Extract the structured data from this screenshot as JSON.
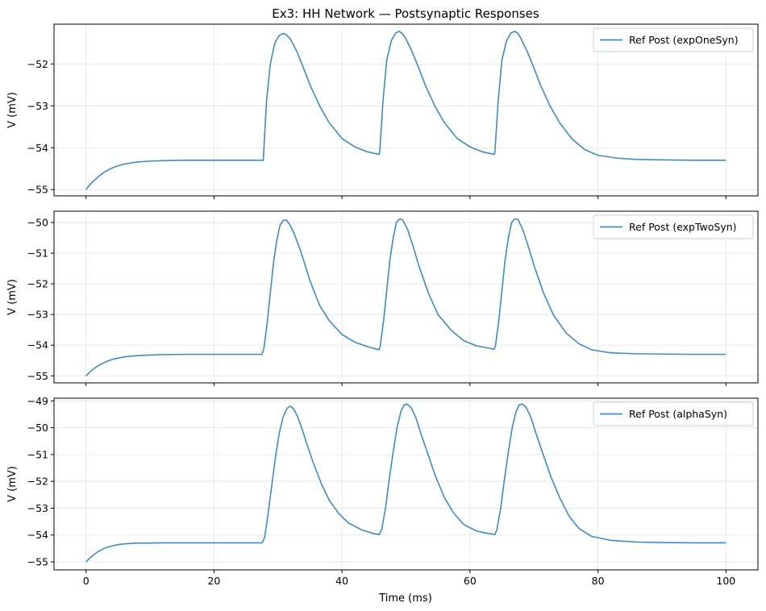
{
  "chart_data": [
    {
      "type": "line",
      "title": "Ex3: HH Network — Postsynaptic Responses",
      "xlabel": "",
      "ylabel": "V (mV)",
      "xlim": [
        -5,
        105
      ],
      "ylim": [
        -55.15,
        -51.05
      ],
      "yticks": [
        -55,
        -54,
        -53,
        -52
      ],
      "xticks": [
        0,
        20,
        40,
        60,
        80,
        100
      ],
      "show_xtick_labels": false,
      "grid": true,
      "legend_position": "top-right",
      "series": [
        {
          "name": "Ref Post (expOneSyn)",
          "color": "#1f77b4",
          "x": [
            0,
            0.5,
            1,
            2,
            3,
            4,
            5,
            6,
            8,
            10,
            12,
            15,
            20,
            25,
            27.4,
            27.7,
            28.2,
            28.8,
            29.5,
            30.2,
            30.8,
            31.3,
            32,
            33,
            34,
            35,
            36.5,
            38,
            40,
            42,
            44,
            45.8,
            45.9,
            46.4,
            47,
            47.7,
            48.4,
            48.9,
            49.4,
            50,
            51,
            52,
            53,
            54.5,
            56,
            58,
            60,
            62,
            63.8,
            63.9,
            64.4,
            65,
            65.7,
            66.4,
            67,
            67.5,
            68,
            69,
            70,
            71,
            72.5,
            74,
            76,
            78,
            80,
            83,
            86,
            90,
            95,
            100
          ],
          "y": [
            -55.0,
            -54.9,
            -54.82,
            -54.68,
            -54.57,
            -54.49,
            -54.43,
            -54.39,
            -54.34,
            -54.32,
            -54.31,
            -54.3,
            -54.3,
            -54.3,
            -54.3,
            -54.3,
            -52.9,
            -52.0,
            -51.5,
            -51.32,
            -51.27,
            -51.3,
            -51.42,
            -51.72,
            -52.1,
            -52.5,
            -53.0,
            -53.4,
            -53.78,
            -53.98,
            -54.1,
            -54.16,
            -54.1,
            -52.9,
            -51.9,
            -51.45,
            -51.26,
            -51.22,
            -51.27,
            -51.4,
            -51.72,
            -52.1,
            -52.5,
            -53.0,
            -53.4,
            -53.78,
            -53.98,
            -54.1,
            -54.16,
            -54.1,
            -52.9,
            -51.9,
            -51.45,
            -51.26,
            -51.22,
            -51.27,
            -51.4,
            -51.72,
            -52.1,
            -52.5,
            -53.0,
            -53.4,
            -53.8,
            -54.05,
            -54.18,
            -54.25,
            -54.28,
            -54.29,
            -54.3,
            -54.3
          ]
        }
      ]
    },
    {
      "type": "line",
      "title": "",
      "xlabel": "",
      "ylabel": "V (mV)",
      "xlim": [
        -5,
        105
      ],
      "ylim": [
        -55.23,
        -49.63
      ],
      "yticks": [
        -55,
        -54,
        -53,
        -52,
        -51,
        -50
      ],
      "xticks": [
        0,
        20,
        40,
        60,
        80,
        100
      ],
      "show_xtick_labels": false,
      "grid": true,
      "legend_position": "top-right",
      "series": [
        {
          "name": "Ref Post (expTwoSyn)",
          "color": "#1f77b4",
          "x": [
            0,
            0.5,
            1,
            2,
            3,
            4,
            5,
            6,
            8,
            10,
            12,
            15,
            20,
            25,
            27.5,
            27.8,
            28.3,
            28.8,
            29.3,
            29.8,
            30.3,
            30.8,
            31.3,
            31.8,
            32.5,
            33.5,
            35,
            36.5,
            38,
            40,
            42,
            44,
            45.8,
            46,
            46.5,
            47,
            47.5,
            48,
            48.5,
            49,
            49.5,
            50.2,
            51,
            52,
            53.5,
            55,
            57,
            59,
            61,
            63,
            63.8,
            64,
            64.5,
            65,
            65.5,
            66,
            66.5,
            67,
            67.5,
            68.2,
            69,
            70,
            71.5,
            73,
            75,
            77,
            79,
            82,
            86,
            90,
            95,
            100
          ],
          "y": [
            -55.0,
            -54.9,
            -54.8,
            -54.66,
            -54.55,
            -54.47,
            -54.42,
            -54.38,
            -54.34,
            -54.32,
            -54.31,
            -54.3,
            -54.3,
            -54.3,
            -54.3,
            -54.1,
            -53.3,
            -52.3,
            -51.3,
            -50.6,
            -50.1,
            -49.93,
            -49.92,
            -50.05,
            -50.35,
            -50.9,
            -51.9,
            -52.7,
            -53.2,
            -53.65,
            -53.9,
            -54.05,
            -54.15,
            -54.0,
            -53.2,
            -52.2,
            -51.2,
            -50.5,
            -50.0,
            -49.88,
            -49.92,
            -50.2,
            -50.7,
            -51.4,
            -52.3,
            -53.0,
            -53.5,
            -53.85,
            -54.02,
            -54.1,
            -54.13,
            -54.0,
            -53.2,
            -52.2,
            -51.2,
            -50.5,
            -50.0,
            -49.88,
            -49.9,
            -50.2,
            -50.7,
            -51.4,
            -52.3,
            -53.0,
            -53.6,
            -53.95,
            -54.15,
            -54.25,
            -54.28,
            -54.29,
            -54.3,
            -54.3
          ]
        }
      ]
    },
    {
      "type": "line",
      "title": "",
      "xlabel": "Time (ms)",
      "ylabel": "V (mV)",
      "xlim": [
        -5,
        105
      ],
      "ylim": [
        -55.3,
        -48.9
      ],
      "yticks": [
        -55,
        -54,
        -53,
        -52,
        -51,
        -50,
        -49
      ],
      "xticks": [
        0,
        20,
        40,
        60,
        80,
        100
      ],
      "show_xtick_labels": true,
      "grid": true,
      "legend_position": "top-right",
      "series": [
        {
          "name": "Ref Post (alphaSyn)",
          "color": "#1f77b4",
          "x": [
            0,
            0.5,
            1,
            2,
            3,
            4,
            5,
            6,
            8,
            10,
            12,
            15,
            20,
            25,
            27.5,
            27.9,
            28.4,
            29,
            29.6,
            30.2,
            30.8,
            31.4,
            31.9,
            32.4,
            33,
            33.7,
            34.5,
            35.5,
            36.8,
            38,
            39.5,
            41,
            43,
            45,
            45.8,
            46.2,
            46.8,
            47.4,
            48,
            48.6,
            49.2,
            49.7,
            50.2,
            50.8,
            51.5,
            52.3,
            53.3,
            54.6,
            56,
            57.5,
            59,
            61,
            63,
            63.9,
            64.2,
            64.8,
            65.4,
            66,
            66.6,
            67.2,
            67.7,
            68.2,
            68.8,
            69.5,
            70.3,
            71.3,
            72.6,
            74,
            75.5,
            77,
            79,
            82,
            86,
            90,
            95,
            100
          ],
          "y": [
            -55.0,
            -54.88,
            -54.77,
            -54.6,
            -54.48,
            -54.41,
            -54.36,
            -54.33,
            -54.3,
            -54.3,
            -54.29,
            -54.29,
            -54.29,
            -54.29,
            -54.29,
            -54.1,
            -53.3,
            -52.2,
            -51.1,
            -50.2,
            -49.6,
            -49.28,
            -49.2,
            -49.28,
            -49.55,
            -50.0,
            -50.6,
            -51.3,
            -52.1,
            -52.7,
            -53.2,
            -53.55,
            -53.8,
            -53.95,
            -53.98,
            -53.8,
            -53.0,
            -51.9,
            -50.9,
            -50.0,
            -49.4,
            -49.15,
            -49.12,
            -49.25,
            -49.6,
            -50.2,
            -50.9,
            -51.8,
            -52.6,
            -53.2,
            -53.6,
            -53.85,
            -53.95,
            -53.98,
            -53.8,
            -53.0,
            -51.9,
            -50.9,
            -50.0,
            -49.4,
            -49.15,
            -49.12,
            -49.25,
            -49.6,
            -50.2,
            -50.9,
            -51.8,
            -52.6,
            -53.3,
            -53.75,
            -54.05,
            -54.2,
            -54.26,
            -54.28,
            -54.29,
            -54.29
          ]
        }
      ]
    }
  ]
}
